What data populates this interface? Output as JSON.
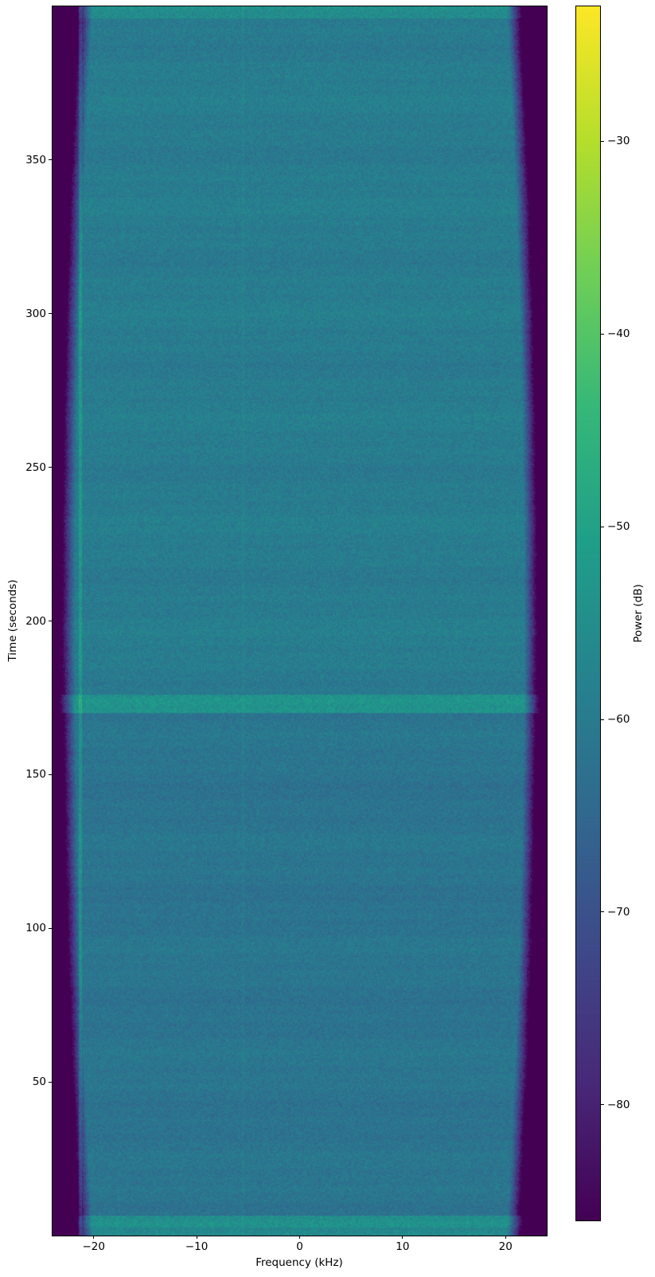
{
  "chart_data": {
    "type": "heatmap",
    "title": "",
    "xlabel": "Frequency (kHz)",
    "ylabel": "Time (seconds)",
    "colorbar_label": "Power (dB)",
    "colormap": "viridis",
    "x_range_khz": [
      -24,
      24
    ],
    "y_range_seconds": [
      0,
      400
    ],
    "color_scale_db": [
      -86,
      -23
    ],
    "x_ticks": [
      {
        "value": -20,
        "label": "−20"
      },
      {
        "value": -10,
        "label": "−10"
      },
      {
        "value": 0,
        "label": "0"
      },
      {
        "value": 10,
        "label": "10"
      },
      {
        "value": 20,
        "label": "20"
      }
    ],
    "y_ticks": [
      {
        "value": 50,
        "label": "50"
      },
      {
        "value": 100,
        "label": "100"
      },
      {
        "value": 150,
        "label": "150"
      },
      {
        "value": 200,
        "label": "200"
      },
      {
        "value": 250,
        "label": "250"
      },
      {
        "value": 300,
        "label": "300"
      },
      {
        "value": 350,
        "label": "350"
      }
    ],
    "colorbar_ticks": [
      {
        "value": -30,
        "label": "−30"
      },
      {
        "value": -40,
        "label": "−40"
      },
      {
        "value": -50,
        "label": "−50"
      },
      {
        "value": -60,
        "label": "−60"
      },
      {
        "value": -70,
        "label": "−70"
      },
      {
        "value": -80,
        "label": "−80"
      }
    ],
    "content_model": {
      "description": "Wideband noise-like spectrogram: speckled blue body spanning roughly ±21 kHz with dark purple anti-alias roll-off toward the ±24 kHz edges (roll-off wider near t=0 and t=400); brighter teal horizontal bursts near t≈173 s and t≈4 s; top rows near t≈400 brighter; upper half slightly brighter than lower half; faint horizontal striping.",
      "time_bands_db": [
        {
          "t_start": 0,
          "t_end": 2.5,
          "db": -56.0
        },
        {
          "t_start": 2.5,
          "t_end": 6.5,
          "db": -54.0
        },
        {
          "t_start": 6.5,
          "t_end": 170,
          "db": -61.5
        },
        {
          "t_start": 170,
          "t_end": 176,
          "db": -53.5
        },
        {
          "t_start": 176,
          "t_end": 396,
          "db": -59.5
        },
        {
          "t_start": 396,
          "t_end": 400,
          "db": -55.0
        }
      ],
      "edge_rolloff": {
        "fc_mid_khz": 21.8,
        "fc_ends_khz": 20.1,
        "slope_db_per_khz": 22
      },
      "vertical_lines": [
        {
          "f_khz": -21.3,
          "width_khz": 0.18,
          "boost_db": 7
        },
        {
          "f_khz": -5.5,
          "width_khz": 0.09,
          "boost_db": 1.5
        }
      ],
      "stripe_components": [
        {
          "amp_db": 0.45,
          "freq": 0.55,
          "phase": 0.0
        },
        {
          "amp_db": 0.35,
          "freq": 1.7,
          "phase": 1.0
        },
        {
          "amp_db": 0.6,
          "freq": 0.18,
          "phase": 4.0
        }
      ],
      "noise_sigma_db": 2.4
    },
    "viridis_stops": [
      "#440154",
      "#482878",
      "#3e4989",
      "#31688e",
      "#26828e",
      "#1f9e89",
      "#35b779",
      "#6ece58",
      "#b5de2b",
      "#fde725"
    ],
    "background_color": "#ffffff"
  }
}
